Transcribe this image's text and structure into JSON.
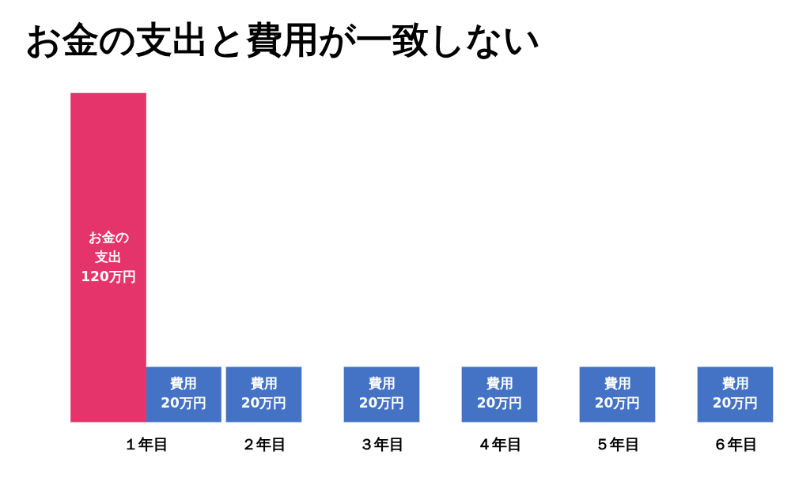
{
  "chart_data": {
    "type": "bar",
    "title": "お金の支出と費用が一致しない",
    "categories": [
      "１年目",
      "２年目",
      "３年目",
      "４年目",
      "５年目",
      "６年目"
    ],
    "series": [
      {
        "name": "お金の支出",
        "color": "#e5336b",
        "values": [
          120,
          null,
          null,
          null,
          null,
          null
        ],
        "value_labels": [
          "120万円",
          null,
          null,
          null,
          null,
          null
        ]
      },
      {
        "name": "費用",
        "color": "#4472c4",
        "values": [
          20,
          20,
          20,
          20,
          20,
          20
        ],
        "value_labels": [
          "20万円",
          "20万円",
          "20万円",
          "20万円",
          "20万円",
          "20万円"
        ]
      }
    ],
    "legend": false,
    "grid": false
  }
}
